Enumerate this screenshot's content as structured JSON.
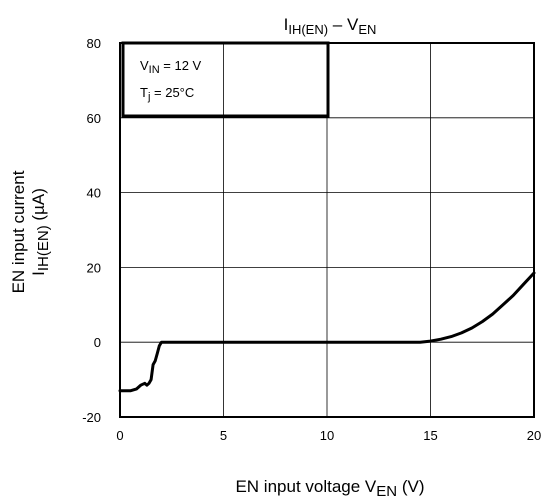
{
  "chart_data": {
    "type": "line",
    "title": {
      "main": "I",
      "main_sub": "IH(EN)",
      "sep": " – V",
      "sep_sub": "EN"
    },
    "xlabel": {
      "text": "EN input voltage   V",
      "sub": "EN",
      "unit": "   (V)"
    },
    "ylabel": {
      "line1": "EN input current",
      "line2_main": "I",
      "line2_sub": "IH(EN)",
      "line2_unit": "   (µA)"
    },
    "xlim": [
      0,
      20
    ],
    "ylim": [
      -20,
      80
    ],
    "xticks": [
      0,
      5,
      10,
      15,
      20
    ],
    "yticks": [
      -20,
      0,
      20,
      40,
      60,
      80
    ],
    "grid": true,
    "conditions": {
      "line1_main": "V",
      "line1_sub": "IN",
      "line1_rest": " = 12 V",
      "line2_main": "T",
      "line2_sub": "j",
      "line2_rest": " = 25°C"
    },
    "series": [
      {
        "x": [
          0,
          0.5,
          0.8,
          1.0,
          1.2,
          1.3,
          1.4,
          1.5,
          1.55,
          1.6,
          1.7,
          1.8,
          1.9,
          2.0,
          2.1,
          3,
          5,
          10,
          14.5,
          15,
          15.5,
          16,
          16.5,
          17,
          17.5,
          18,
          18.5,
          19,
          19.5,
          20
        ],
        "y": [
          -13,
          -13,
          -12.5,
          -11.5,
          -11,
          -11.5,
          -11,
          -10,
          -8,
          -6,
          -5,
          -3,
          -1,
          0,
          0,
          0,
          0,
          0,
          0,
          0.3,
          0.8,
          1.5,
          2.5,
          3.8,
          5.5,
          7.5,
          10,
          12.5,
          15.5,
          18.5
        ]
      }
    ]
  }
}
